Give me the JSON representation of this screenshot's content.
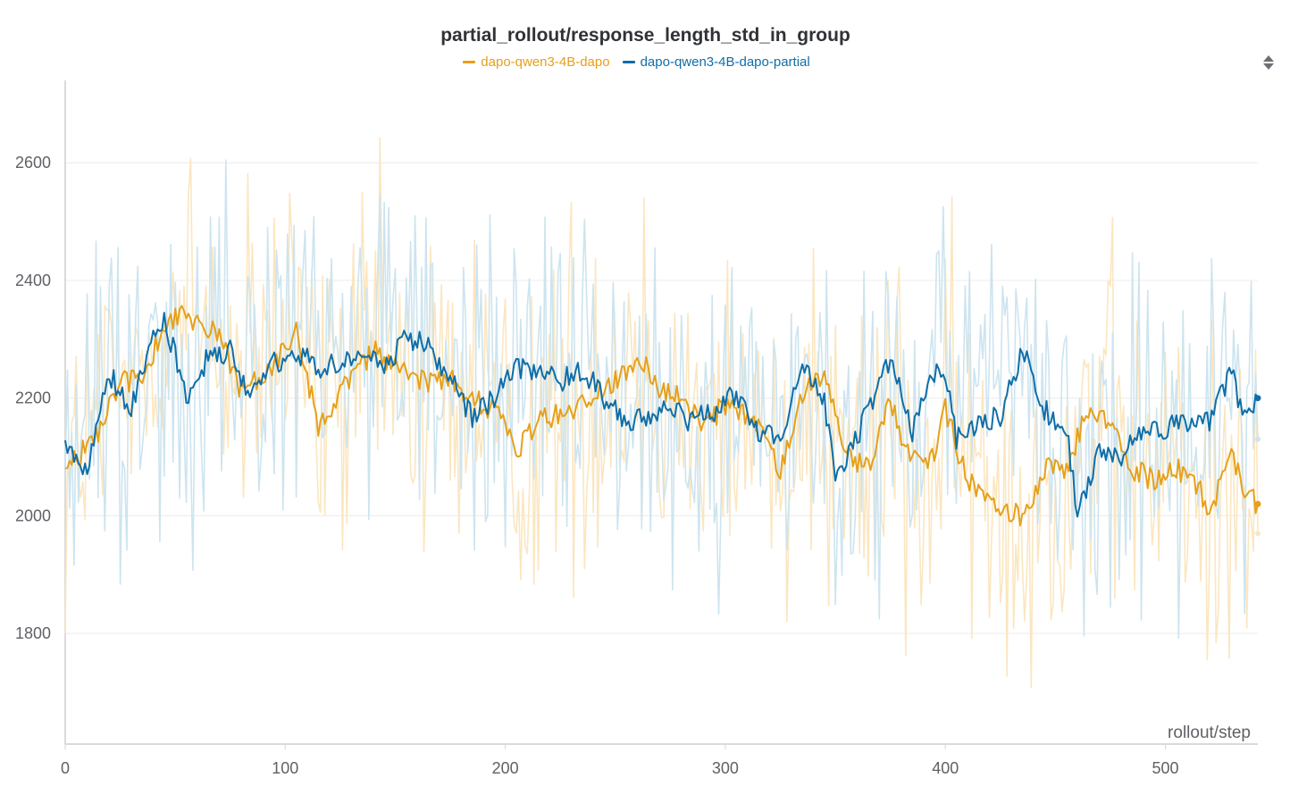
{
  "chart_data": {
    "type": "line",
    "title": "partial_rollout/response_length_std_in_group",
    "xlabel": "rollout/step",
    "ylabel": "",
    "xlim": [
      0,
      542
    ],
    "ylim": [
      1612,
      2740
    ],
    "x_ticks": [
      0,
      100,
      200,
      300,
      400,
      500
    ],
    "y_ticks": [
      1800,
      2000,
      2200,
      2400,
      2600
    ],
    "grid": true,
    "legend_position": "top-center",
    "smoothing_window": 5,
    "series": [
      {
        "name": "dapo-qwen3-4B-dapo",
        "color": "#e6a01a",
        "raw_color": "#fbe6c0",
        "last_value": 2020,
        "raw_last_value": 1970,
        "knots": [
          [
            0,
            2075
          ],
          [
            15,
            2140
          ],
          [
            25,
            2230
          ],
          [
            35,
            2230
          ],
          [
            45,
            2330
          ],
          [
            55,
            2340
          ],
          [
            70,
            2310
          ],
          [
            80,
            2210
          ],
          [
            95,
            2260
          ],
          [
            105,
            2320
          ],
          [
            115,
            2150
          ],
          [
            125,
            2210
          ],
          [
            140,
            2280
          ],
          [
            150,
            2250
          ],
          [
            160,
            2230
          ],
          [
            175,
            2230
          ],
          [
            185,
            2200
          ],
          [
            195,
            2180
          ],
          [
            205,
            2110
          ],
          [
            215,
            2160
          ],
          [
            230,
            2180
          ],
          [
            250,
            2230
          ],
          [
            260,
            2270
          ],
          [
            270,
            2220
          ],
          [
            280,
            2200
          ],
          [
            290,
            2150
          ],
          [
            300,
            2190
          ],
          [
            315,
            2160
          ],
          [
            325,
            2070
          ],
          [
            335,
            2210
          ],
          [
            345,
            2230
          ],
          [
            355,
            2100
          ],
          [
            365,
            2080
          ],
          [
            375,
            2190
          ],
          [
            385,
            2090
          ],
          [
            395,
            2100
          ],
          [
            400,
            2180
          ],
          [
            410,
            2060
          ],
          [
            420,
            2030
          ],
          [
            428,
            2010
          ],
          [
            435,
            2000
          ],
          [
            445,
            2080
          ],
          [
            455,
            2080
          ],
          [
            465,
            2180
          ],
          [
            475,
            2150
          ],
          [
            485,
            2080
          ],
          [
            495,
            2060
          ],
          [
            505,
            2080
          ],
          [
            515,
            2050
          ],
          [
            520,
            2000
          ],
          [
            530,
            2120
          ],
          [
            535,
            2040
          ],
          [
            542,
            2020
          ]
        ]
      },
      {
        "name": "dapo-qwen3-4B-dapo-partial",
        "color": "#0f6ea8",
        "raw_color": "#cde4ef",
        "last_value": 2200,
        "raw_last_value": 2130,
        "knots": [
          [
            0,
            2120
          ],
          [
            10,
            2080
          ],
          [
            20,
            2240
          ],
          [
            30,
            2180
          ],
          [
            40,
            2320
          ],
          [
            45,
            2340
          ],
          [
            55,
            2200
          ],
          [
            65,
            2270
          ],
          [
            75,
            2280
          ],
          [
            85,
            2200
          ],
          [
            95,
            2260
          ],
          [
            105,
            2280
          ],
          [
            115,
            2250
          ],
          [
            125,
            2260
          ],
          [
            135,
            2280
          ],
          [
            145,
            2250
          ],
          [
            155,
            2300
          ],
          [
            165,
            2290
          ],
          [
            175,
            2230
          ],
          [
            185,
            2170
          ],
          [
            195,
            2200
          ],
          [
            205,
            2250
          ],
          [
            215,
            2250
          ],
          [
            225,
            2230
          ],
          [
            235,
            2250
          ],
          [
            245,
            2200
          ],
          [
            255,
            2160
          ],
          [
            265,
            2170
          ],
          [
            275,
            2180
          ],
          [
            285,
            2160
          ],
          [
            295,
            2180
          ],
          [
            305,
            2210
          ],
          [
            315,
            2140
          ],
          [
            325,
            2130
          ],
          [
            335,
            2250
          ],
          [
            345,
            2200
          ],
          [
            350,
            2060
          ],
          [
            355,
            2090
          ],
          [
            365,
            2180
          ],
          [
            375,
            2270
          ],
          [
            385,
            2140
          ],
          [
            395,
            2240
          ],
          [
            400,
            2240
          ],
          [
            405,
            2130
          ],
          [
            415,
            2160
          ],
          [
            425,
            2170
          ],
          [
            435,
            2280
          ],
          [
            445,
            2180
          ],
          [
            455,
            2150
          ],
          [
            460,
            2000
          ],
          [
            470,
            2110
          ],
          [
            480,
            2100
          ],
          [
            490,
            2150
          ],
          [
            500,
            2150
          ],
          [
            510,
            2160
          ],
          [
            520,
            2160
          ],
          [
            530,
            2240
          ],
          [
            535,
            2180
          ],
          [
            542,
            2200
          ]
        ]
      }
    ]
  }
}
